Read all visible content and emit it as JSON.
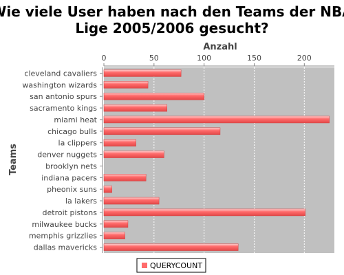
{
  "chart_data": {
    "type": "bar",
    "orientation": "horizontal",
    "title_line1": "Wie viele User haben nach den Teams der NBA",
    "title_line2": "Lige 2005/2006 gesucht?",
    "xlabel": "Anzahl",
    "ylabel": "Teams",
    "xlim": [
      0,
      230
    ],
    "x_ticks": [
      0,
      50,
      100,
      150,
      200
    ],
    "x_axis_position": "top",
    "grid": true,
    "legend_position": "bottom",
    "categories": [
      "cleveland cavaliers",
      "washington wizards",
      "san antonio spurs",
      "sacramento kings",
      "miami heat",
      "chicago bulls",
      "la clippers",
      "denver nuggets",
      "brooklyn nets",
      "indiana pacers",
      "pheonix suns",
      "la lakers",
      "detroit pistons",
      "milwaukee bucks",
      "memphis grizzlies",
      "dallas mavericks"
    ],
    "series": [
      {
        "name": "QUERYCOUNT",
        "color": "#ff6b6b",
        "values": [
          77,
          44,
          100,
          63,
          225,
          116,
          32,
          60,
          0,
          42,
          8,
          55,
          201,
          24,
          21,
          134
        ]
      }
    ],
    "colors": {
      "plot_background": "#c0c0c0",
      "bar": "#ff6b6b",
      "gridline": "#ffffff"
    }
  }
}
